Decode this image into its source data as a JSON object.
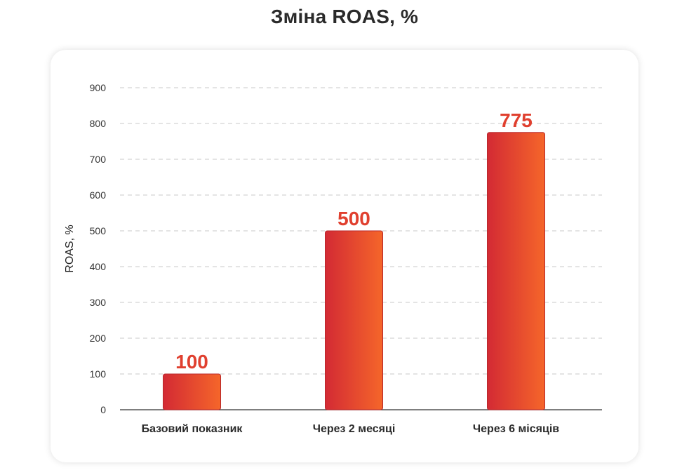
{
  "title": "Зміна ROAS, %",
  "chart_data": {
    "type": "bar",
    "title": "Зміна ROAS, %",
    "xlabel": "",
    "ylabel": "ROAS, %",
    "categories": [
      "Базовий показник",
      "Через 2 месяці",
      "Через 6 місяців"
    ],
    "values": [
      100,
      500,
      775
    ],
    "value_labels": [
      "100",
      "500",
      "775"
    ],
    "ylim": [
      0,
      900
    ],
    "yticks": [
      0,
      100,
      200,
      300,
      400,
      500,
      600,
      700,
      800,
      900
    ],
    "grid": true,
    "legend": "none",
    "colors": {
      "bar_start": "#d32a34",
      "bar_end": "#f5662a",
      "value_label": "#e0402f",
      "grid": "#c8c8c8",
      "axis": "#333333"
    }
  }
}
